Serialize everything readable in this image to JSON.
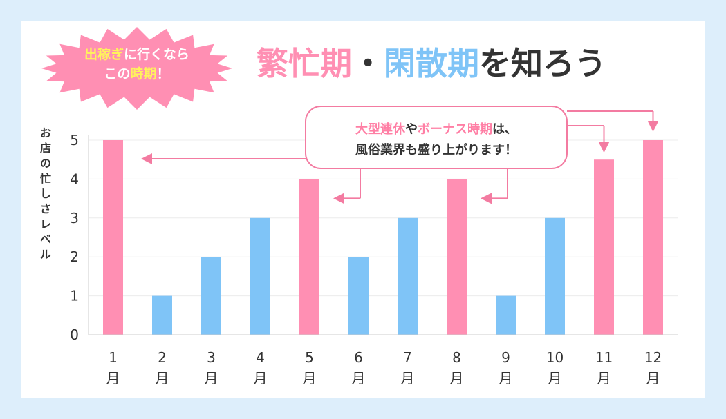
{
  "badge": {
    "line1": [
      {
        "text": "出稼ぎ",
        "hl": true
      },
      {
        "text": "に行くなら",
        "hl": false
      }
    ],
    "line2": [
      {
        "text": "この",
        "hl": false
      },
      {
        "text": "時期",
        "hl": true
      },
      {
        "text": "！",
        "hl": false
      }
    ]
  },
  "title": [
    {
      "text": "繁忙期",
      "tone": "busy"
    },
    {
      "text": "・",
      "tone": "plain"
    },
    {
      "text": "閑散期",
      "tone": "quiet"
    },
    {
      "text": "を知ろう",
      "tone": "plain"
    }
  ],
  "callout": {
    "line1": [
      {
        "text": "大型連休",
        "hl": true
      },
      {
        "text": "や",
        "hl": false
      },
      {
        "text": "ボーナス時期",
        "hl": true
      },
      {
        "text": "は、",
        "hl": false
      }
    ],
    "line2": [
      {
        "text": "風俗業界も盛り上がります！",
        "hl": false
      }
    ],
    "points_to": [
      "1月",
      "5月",
      "8月",
      "11月",
      "12月"
    ]
  },
  "colors": {
    "busy": "#ff8fb3",
    "quiet": "#7fc4f7",
    "text": "#333333",
    "badge_bg": "#ff8fb3",
    "badge_text": "#ffffff",
    "badge_highlight": "#fff35c",
    "callout_border": "#f37ba1",
    "callout_highlight": "#ff7fa5",
    "background": "#ddeefb"
  },
  "chart_data": {
    "type": "bar",
    "ylabel": "お店の忙しさレベル",
    "ylim": [
      0,
      5
    ],
    "yticks": [
      0,
      1,
      2,
      3,
      4,
      5
    ],
    "grid": true,
    "categories": [
      {
        "num": "1",
        "unit": "月"
      },
      {
        "num": "2",
        "unit": "月"
      },
      {
        "num": "3",
        "unit": "月"
      },
      {
        "num": "4",
        "unit": "月"
      },
      {
        "num": "5",
        "unit": "月"
      },
      {
        "num": "6",
        "unit": "月"
      },
      {
        "num": "7",
        "unit": "月"
      },
      {
        "num": "8",
        "unit": "月"
      },
      {
        "num": "9",
        "unit": "月"
      },
      {
        "num": "10",
        "unit": "月"
      },
      {
        "num": "11",
        "unit": "月"
      },
      {
        "num": "12",
        "unit": "月"
      }
    ],
    "values": [
      5,
      1,
      2,
      3,
      4,
      2,
      3,
      4,
      1,
      3,
      4.5,
      5
    ],
    "busy": [
      true,
      false,
      false,
      false,
      true,
      false,
      false,
      true,
      false,
      false,
      true,
      true
    ]
  }
}
